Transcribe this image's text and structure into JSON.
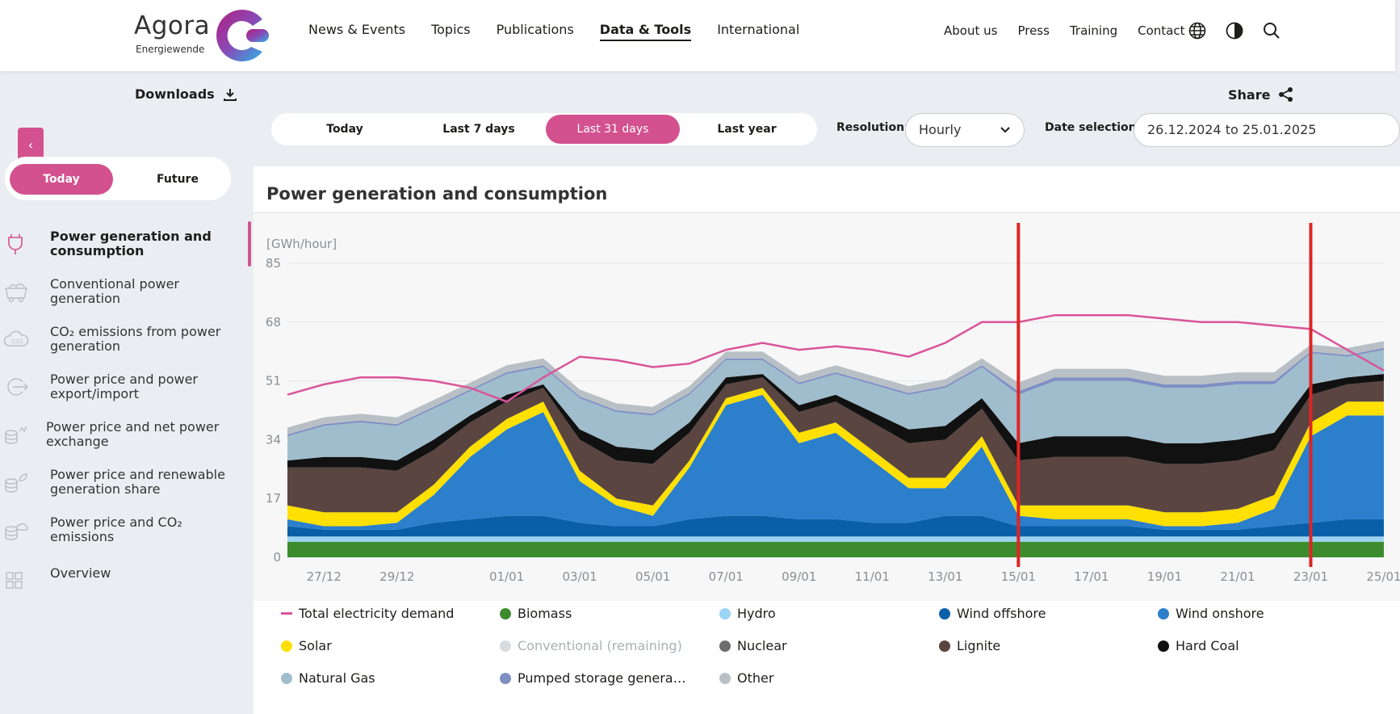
{
  "logo": {
    "wordmark": "Agora",
    "subtitle": "Energiewende"
  },
  "nav": {
    "main": [
      "News & Events",
      "Topics",
      "Publications",
      "Data & Tools",
      "International"
    ],
    "active": "Data & Tools",
    "meta": [
      "About us",
      "Press",
      "Training",
      "Contact"
    ],
    "icons": [
      "globe-icon",
      "contrast-icon",
      "search-icon"
    ]
  },
  "subbar": {
    "downloads": "Downloads",
    "share": "Share"
  },
  "filters": {
    "ranges": [
      "Today",
      "Last 7 days",
      "Last 31 days",
      "Last year"
    ],
    "selected_range": "Last 31 days",
    "resolution_label": "Resolution:",
    "resolution_value": "Hourly",
    "date_label": "Date selection:",
    "date_value": "26.12.2024 to 25.01.2025"
  },
  "sidebar": {
    "toggle": "‹",
    "modes": [
      "Today",
      "Future"
    ],
    "selected_mode": "Today",
    "items": [
      {
        "label": "Power generation and consumption",
        "icon": "plug-icon",
        "active": true
      },
      {
        "label": "Conventional power generation",
        "icon": "coal-cart-icon"
      },
      {
        "label": "CO₂ emissions from power generation",
        "icon": "co2-cloud-icon"
      },
      {
        "label": "Power price and power export/import",
        "icon": "exchange-icon"
      },
      {
        "label": "Power price and net power exchange",
        "icon": "coins-exchange-icon"
      },
      {
        "label": "Power price and renewable generation share",
        "icon": "coins-leaf-icon"
      },
      {
        "label": "Power price and CO₂ emissions",
        "icon": "coins-cloud-icon"
      },
      {
        "label": "Overview",
        "icon": "grid-icon"
      }
    ]
  },
  "panel": {
    "title": "Power generation and consumption"
  },
  "colors": {
    "accent": "#d3518f",
    "demand": "#d9559a",
    "biomass": "#3c8c2e",
    "hydro": "#9ad4f2",
    "wind_offshore": "#0a60a8",
    "wind_onshore": "#2b7fcb",
    "solar": "#ffe000",
    "conventional_remaining": "#d6dbe0",
    "nuclear": "#6e6e6e",
    "lignite": "#5a4541",
    "hard_coal": "#111111",
    "natural_gas": "#9fbdcc",
    "pumped_storage": "#7f8fc4",
    "other": "#b8c0c6",
    "marker": "#e02424"
  },
  "chart_data": {
    "type": "area",
    "ylabel": "[GWh/hour]",
    "ylim": [
      0,
      85
    ],
    "yticks": [
      0,
      17,
      34,
      51,
      68,
      85
    ],
    "xticks": [
      "27/12",
      "29/12",
      "01/01",
      "03/01",
      "05/01",
      "07/01",
      "09/01",
      "11/01",
      "13/01",
      "15/01",
      "17/01",
      "19/01",
      "21/01",
      "23/01",
      "25/01"
    ],
    "x_range": [
      "26.12.2024",
      "25.01.2025"
    ],
    "resolution": "daily estimate of hourly stacked series",
    "days": [
      "26/12",
      "27/12",
      "28/12",
      "29/12",
      "30/12",
      "31/12",
      "01/01",
      "02/01",
      "03/01",
      "04/01",
      "05/01",
      "06/01",
      "07/01",
      "08/01",
      "09/01",
      "10/01",
      "11/01",
      "12/01",
      "13/01",
      "14/01",
      "15/01",
      "16/01",
      "17/01",
      "18/01",
      "19/01",
      "20/01",
      "21/01",
      "22/01",
      "23/01",
      "24/01",
      "25/01"
    ],
    "series": [
      {
        "name": "Biomass",
        "values": [
          4.5,
          4.5,
          4.5,
          4.5,
          4.5,
          4.5,
          4.5,
          4.5,
          4.5,
          4.5,
          4.5,
          4.5,
          4.5,
          4.5,
          4.5,
          4.5,
          4.5,
          4.5,
          4.5,
          4.5,
          4.5,
          4.5,
          4.5,
          4.5,
          4.5,
          4.5,
          4.5,
          4.5,
          4.5,
          4.5,
          4.5
        ]
      },
      {
        "name": "Hydro",
        "values": [
          1.5,
          1.5,
          1.5,
          1.5,
          1.5,
          1.5,
          1.5,
          1.5,
          1.5,
          1.5,
          1.5,
          1.5,
          1.5,
          1.5,
          1.5,
          1.5,
          1.5,
          1.5,
          1.5,
          1.5,
          1.5,
          1.5,
          1.5,
          1.5,
          1.5,
          1.5,
          1.5,
          1.5,
          1.5,
          1.5,
          1.5
        ]
      },
      {
        "name": "Wind offshore",
        "values": [
          3,
          2,
          2,
          2,
          4,
          5,
          6,
          6,
          4,
          3,
          3,
          5,
          6,
          6,
          5,
          5,
          4,
          4,
          6,
          6,
          3,
          3,
          3,
          3,
          2,
          2,
          2,
          3,
          4,
          5,
          5
        ]
      },
      {
        "name": "Wind onshore",
        "values": [
          2,
          1,
          1,
          2,
          8,
          18,
          25,
          30,
          12,
          6,
          3,
          15,
          32,
          35,
          22,
          25,
          18,
          10,
          8,
          20,
          3,
          2,
          2,
          2,
          1,
          1,
          2,
          5,
          25,
          30,
          30
        ]
      },
      {
        "name": "Solar",
        "values": [
          4,
          4,
          4,
          3,
          3,
          3,
          3,
          3,
          3,
          2,
          3,
          2,
          2,
          2,
          3,
          3,
          3,
          3,
          3,
          3,
          3,
          4,
          4,
          4,
          4,
          4,
          4,
          4,
          4,
          4,
          4
        ]
      },
      {
        "name": "Nuclear",
        "values": [
          0,
          0,
          0,
          0,
          0,
          0,
          0,
          0,
          0,
          0,
          0,
          0,
          0,
          0,
          0,
          0,
          0,
          0,
          0,
          0,
          0,
          0,
          0,
          0,
          0,
          0,
          0,
          0,
          0,
          0,
          0
        ]
      },
      {
        "name": "Lignite",
        "values": [
          11,
          13,
          13,
          12,
          10,
          7,
          5,
          4,
          9,
          11,
          12,
          8,
          4,
          3,
          6,
          6,
          8,
          10,
          11,
          8,
          13,
          14,
          14,
          14,
          14,
          14,
          14,
          13,
          8,
          5,
          6
        ]
      },
      {
        "name": "Hard Coal",
        "values": [
          2,
          3,
          3,
          3,
          3,
          2,
          2,
          1,
          3,
          4,
          4,
          3,
          2,
          1,
          2,
          2,
          3,
          4,
          4,
          3,
          5,
          6,
          6,
          6,
          6,
          6,
          6,
          5,
          3,
          2,
          2
        ]
      },
      {
        "name": "Natural Gas",
        "values": [
          7,
          9,
          10,
          10,
          9,
          7,
          6,
          5,
          9,
          10,
          10,
          8,
          5,
          4,
          6,
          6,
          8,
          10,
          11,
          9,
          14,
          16,
          16,
          16,
          16,
          16,
          16,
          14,
          9,
          6,
          7
        ]
      },
      {
        "name": "Pumped storage generation",
        "values": [
          0.5,
          0.5,
          0.5,
          0.5,
          0.5,
          0.5,
          0.5,
          0.5,
          0.5,
          0.5,
          0.5,
          0.5,
          0.5,
          0.5,
          0.5,
          0.5,
          0.5,
          0.5,
          0.5,
          0.5,
          1,
          1,
          1,
          1,
          1,
          1,
          1,
          1,
          0.5,
          0.5,
          0.5
        ]
      },
      {
        "name": "Other",
        "values": [
          2,
          2,
          2,
          2,
          2,
          2,
          2,
          2,
          2,
          2,
          2,
          2,
          2,
          2,
          2,
          2,
          2,
          2,
          2,
          2,
          2.5,
          2.5,
          2.5,
          2.5,
          2.5,
          2.5,
          2.5,
          2.5,
          2,
          2,
          2
        ]
      },
      {
        "name": "Total electricity demand",
        "values": [
          47,
          50,
          52,
          52,
          51,
          49,
          45,
          52,
          58,
          57,
          55,
          56,
          60,
          62,
          60,
          61,
          60,
          58,
          62,
          68,
          68,
          70,
          70,
          70,
          69,
          68,
          68,
          67,
          66,
          60,
          54
        ]
      }
    ],
    "markers_at": [
      "15/01",
      "23/01"
    ],
    "legend": [
      "Total electricity demand",
      "Biomass",
      "Hydro",
      "Wind offshore",
      "Wind onshore",
      "Solar",
      "Conventional (remaining)",
      "Nuclear",
      "Lignite",
      "Hard Coal",
      "Natural Gas",
      "Pumped storage genera…",
      "Other"
    ]
  }
}
